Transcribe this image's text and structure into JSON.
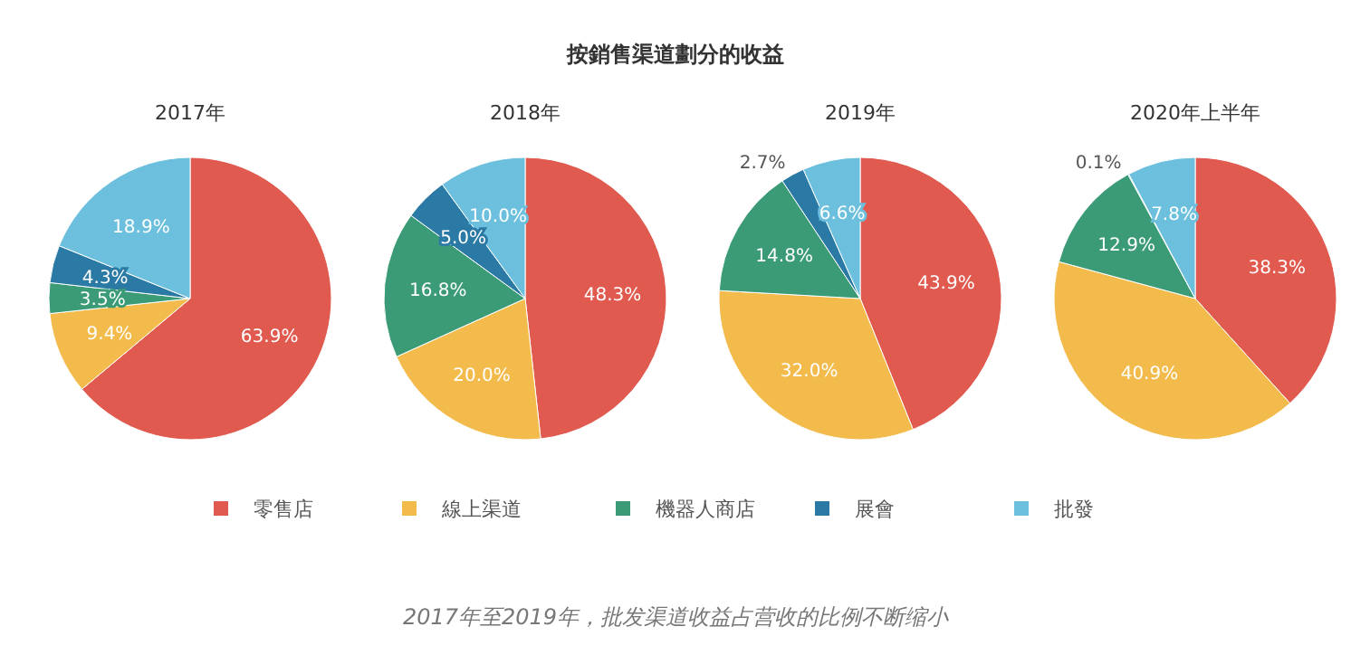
{
  "chart_data": [
    {
      "type": "pie",
      "title": "按銷售渠道劃分的收益",
      "subtitle": "2017年",
      "categories": [
        "零售店",
        "線上渠道",
        "機器人商店",
        "展會",
        "批發"
      ],
      "values": [
        63.9,
        9.4,
        3.5,
        4.3,
        18.9
      ],
      "value_labels": [
        "63.9%",
        "9.4%",
        "3.5%",
        "4.3%",
        "18.9%"
      ],
      "colors": [
        "#e05a4f",
        "#f2bb4b",
        "#3b9b76",
        "#2b7aa5",
        "#6cc0de"
      ],
      "legend": "bottom",
      "annotations": [
        "2017年至2019年，批发渠道收益占营收的比例不断缩小"
      ]
    },
    {
      "type": "pie",
      "subtitle": "2018年",
      "values": [
        48.3,
        20.0,
        16.8,
        5.0,
        10.0
      ],
      "value_labels": [
        "48.3%",
        "20.0%",
        "16.8%",
        "5.0%",
        "10.0%"
      ],
      "colors": [
        "#e05a4f",
        "#f2bb4b",
        "#3b9b76",
        "#2b7aa5",
        "#6cc0de"
      ]
    },
    {
      "type": "pie",
      "subtitle": "2019年",
      "values": [
        43.9,
        32.0,
        14.8,
        2.7,
        6.6
      ],
      "value_labels": [
        "43.9%",
        "32.0%",
        "14.8%",
        "2.7%",
        "6.6%"
      ],
      "colors": [
        "#e05a4f",
        "#f2bb4b",
        "#3b9b76",
        "#2b7aa5",
        "#6cc0de"
      ]
    },
    {
      "type": "pie",
      "subtitle": "2020年上半年",
      "values": [
        38.3,
        40.9,
        12.9,
        0.1,
        7.8
      ],
      "value_labels": [
        "38.3%",
        "40.9%",
        "12.9%",
        "0.1%",
        "7.8%"
      ],
      "colors": [
        "#e05a4f",
        "#f2bb4b",
        "#3b9b76",
        "#2b7aa5",
        "#6cc0de"
      ]
    }
  ]
}
